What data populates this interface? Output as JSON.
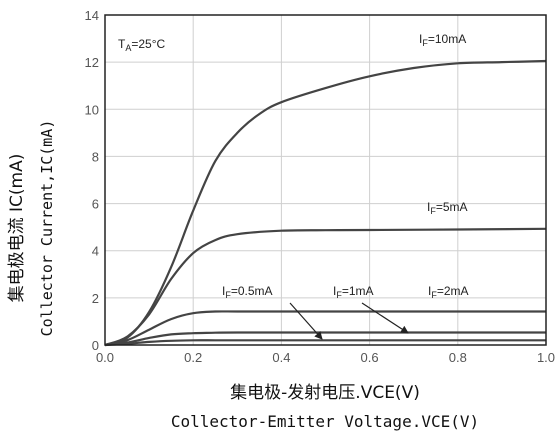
{
  "chart_data": {
    "type": "line",
    "title": "",
    "xlabel_cn": "集电极-发射电压.VCE(V)",
    "xlabel_en": "Collector-Emitter Voltage.VCE(V)",
    "ylabel_cn": "集电极电流 IC(mA)",
    "ylabel_en": "Collector Current,IC(mA)",
    "xlim": [
      0.0,
      1.0
    ],
    "ylim": [
      0,
      14
    ],
    "x_ticks": [
      "0.0",
      "0.2",
      "0.4",
      "0.6",
      "0.8",
      "1.0"
    ],
    "y_ticks": [
      "0",
      "2",
      "4",
      "6",
      "8",
      "10",
      "12",
      "14"
    ],
    "grid": true,
    "annotation": {
      "base": "T",
      "sub": "A",
      "rest": "=25°C"
    },
    "series": [
      {
        "label_base": "I",
        "label_sub": "F",
        "label_rest": "=10mA",
        "x": [
          0,
          0.05,
          0.1,
          0.15,
          0.2,
          0.25,
          0.3,
          0.35,
          0.4,
          0.5,
          0.6,
          0.7,
          0.8,
          0.9,
          1.0
        ],
        "y": [
          0,
          0.3,
          1.4,
          3.3,
          5.7,
          7.8,
          9.0,
          9.8,
          10.3,
          10.9,
          11.4,
          11.75,
          11.95,
          12.0,
          12.05
        ]
      },
      {
        "label_base": "I",
        "label_sub": "F",
        "label_rest": "=5mA",
        "x": [
          0,
          0.05,
          0.1,
          0.15,
          0.2,
          0.25,
          0.3,
          0.4,
          0.5,
          0.6,
          0.8,
          1.0
        ],
        "y": [
          0,
          0.35,
          1.3,
          2.8,
          3.9,
          4.45,
          4.7,
          4.85,
          4.87,
          4.88,
          4.9,
          4.93
        ]
      },
      {
        "label_base": "I",
        "label_sub": "F",
        "label_rest": "=2mA",
        "x": [
          0,
          0.05,
          0.1,
          0.15,
          0.2,
          0.25,
          0.3,
          0.4,
          0.6,
          0.8,
          1.0
        ],
        "y": [
          0,
          0.2,
          0.65,
          1.1,
          1.35,
          1.42,
          1.42,
          1.42,
          1.42,
          1.42,
          1.42
        ]
      },
      {
        "label_base": "I",
        "label_sub": "F",
        "label_rest": "=1mA",
        "x": [
          0,
          0.05,
          0.1,
          0.15,
          0.2,
          0.25,
          0.3,
          0.4,
          0.6,
          0.8,
          1.0
        ],
        "y": [
          0,
          0.1,
          0.3,
          0.45,
          0.5,
          0.52,
          0.53,
          0.53,
          0.53,
          0.53,
          0.53
        ]
      },
      {
        "label_base": "I",
        "label_sub": "F",
        "label_rest": "=0.5mA",
        "x": [
          0,
          0.05,
          0.1,
          0.15,
          0.2,
          0.25,
          0.3,
          0.4,
          0.6,
          0.8,
          1.0
        ],
        "y": [
          0,
          0.05,
          0.13,
          0.18,
          0.2,
          0.2,
          0.2,
          0.2,
          0.2,
          0.2,
          0.2
        ]
      }
    ]
  }
}
